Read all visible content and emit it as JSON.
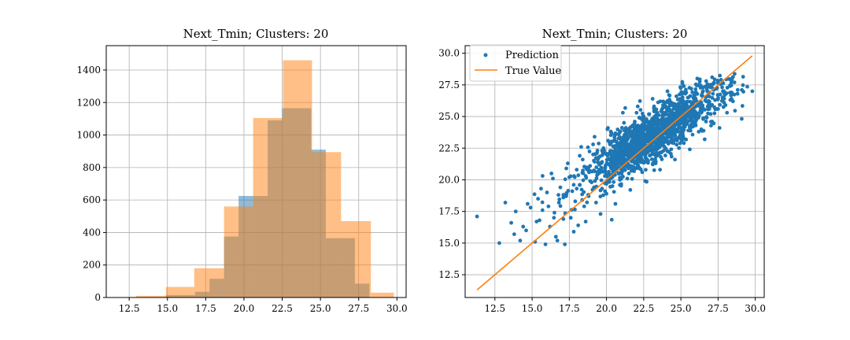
{
  "colors": {
    "blue": "#1f77b4",
    "orange": "#ff7f0e",
    "grid": "#b0b0b0"
  },
  "chart_data": [
    {
      "type": "bar",
      "subtype": "histogram-overlay",
      "title": "Next_Tmin; Clusters: 20",
      "grid": true,
      "xlim": [
        11.0,
        30.6
      ],
      "ylim": [
        0,
        1550
      ],
      "xticks": [
        12.5,
        15.0,
        17.5,
        20.0,
        22.5,
        25.0,
        27.5,
        30.0
      ],
      "xtick_labels": [
        "12.5",
        "15.0",
        "17.5",
        "20.0",
        "22.5",
        "25.0",
        "27.5",
        "30.0"
      ],
      "yticks": [
        0,
        200,
        400,
        600,
        800,
        1000,
        1200,
        1400
      ],
      "ytick_labels": [
        "0",
        "200",
        "400",
        "600",
        "800",
        "1000",
        "1200",
        "1400"
      ],
      "series": [
        {
          "color": "#1f77b4",
          "alpha": 0.5,
          "bins": [
            [
              14.9,
              15.85,
              15
            ],
            [
              15.85,
              16.8,
              15
            ],
            [
              16.8,
              17.75,
              35
            ],
            [
              17.75,
              18.7,
              115
            ],
            [
              18.7,
              19.65,
              375
            ],
            [
              19.65,
              20.6,
              625
            ],
            [
              20.6,
              21.55,
              625
            ],
            [
              21.55,
              22.5,
              1090
            ],
            [
              22.5,
              23.45,
              1165
            ],
            [
              23.45,
              24.4,
              1165
            ],
            [
              24.4,
              25.35,
              910
            ],
            [
              25.35,
              26.3,
              365
            ],
            [
              26.3,
              27.25,
              365
            ],
            [
              27.25,
              28.2,
              85
            ]
          ]
        },
        {
          "color": "#ff7f0e",
          "alpha": 0.5,
          "bins": [
            [
              12.95,
              14.9,
              10
            ],
            [
              14.9,
              16.75,
              65
            ],
            [
              16.75,
              18.7,
              180
            ],
            [
              18.7,
              20.6,
              560
            ],
            [
              20.6,
              22.55,
              1105
            ],
            [
              22.55,
              24.45,
              1460
            ],
            [
              24.45,
              26.35,
              895
            ],
            [
              26.35,
              28.3,
              470
            ],
            [
              28.3,
              29.8,
              30
            ]
          ]
        }
      ]
    },
    {
      "type": "scatter",
      "title": "Next_Tmin; Clusters: 20",
      "grid": true,
      "xlim": [
        10.5,
        30.6
      ],
      "ylim": [
        10.7,
        30.6
      ],
      "xticks": [
        12.5,
        15.0,
        17.5,
        20.0,
        22.5,
        25.0,
        27.5,
        30.0
      ],
      "xtick_labels": [
        "12.5",
        "15.0",
        "17.5",
        "20.0",
        "22.5",
        "25.0",
        "27.5",
        "30.0"
      ],
      "yticks": [
        12.5,
        15.0,
        17.5,
        20.0,
        22.5,
        25.0,
        27.5,
        30.0
      ],
      "ytick_labels": [
        "12.5",
        "15.0",
        "17.5",
        "20.0",
        "22.5",
        "25.0",
        "27.5",
        "30.0"
      ],
      "legend_position": "top-left",
      "series": [
        {
          "name": "Prediction",
          "kind": "scatter",
          "color": "#1f77b4",
          "points": [
            [
              11.3,
              17.1
            ],
            [
              12.8,
              15.0
            ],
            [
              13.2,
              18.2
            ],
            [
              13.6,
              16.6
            ],
            [
              13.9,
              17.5
            ],
            [
              14.2,
              15.2
            ],
            [
              14.6,
              16.0
            ],
            [
              14.9,
              17.8
            ],
            [
              15.2,
              15.1
            ],
            [
              15.4,
              18.5
            ],
            [
              15.5,
              16.8
            ],
            [
              15.7,
              17.6
            ],
            [
              15.9,
              14.9
            ],
            [
              16.0,
              19.0
            ],
            [
              16.2,
              16.3
            ],
            [
              16.3,
              20.5
            ],
            [
              16.5,
              17.4
            ],
            [
              16.6,
              15.5
            ],
            [
              16.8,
              18.2
            ],
            [
              16.9,
              19.4
            ],
            [
              17.1,
              16.9
            ],
            [
              17.2,
              14.9
            ],
            [
              17.3,
              18.8
            ],
            [
              17.5,
              20.2
            ],
            [
              17.6,
              17.0
            ],
            [
              17.7,
              19.1
            ],
            [
              17.9,
              18.3
            ],
            [
              18.0,
              20.8
            ],
            [
              18.1,
              16.4
            ],
            [
              18.2,
              19.6
            ],
            [
              18.4,
              21.6
            ],
            [
              18.5,
              17.9
            ],
            [
              18.6,
              20.3
            ],
            [
              18.8,
              18.7
            ],
            [
              18.9,
              21.1
            ],
            [
              19.0,
              19.8
            ],
            [
              19.1,
              22.0
            ],
            [
              19.3,
              18.2
            ],
            [
              19.4,
              20.6
            ],
            [
              19.5,
              21.8
            ],
            [
              19.7,
              19.3
            ],
            [
              19.8,
              22.5
            ],
            [
              19.9,
              20.9
            ],
            [
              20.0,
              18.9
            ],
            [
              20.2,
              21.6
            ],
            [
              20.3,
              23.0
            ],
            [
              20.4,
              20.2
            ],
            [
              20.5,
              22.2
            ],
            [
              20.7,
              21.0
            ],
            [
              20.8,
              23.6
            ],
            [
              20.9,
              19.6
            ],
            [
              21.0,
              22.7
            ],
            [
              21.2,
              21.4
            ],
            [
              21.3,
              24.1
            ],
            [
              21.4,
              22.0
            ],
            [
              21.5,
              20.5
            ],
            [
              21.7,
              23.1
            ],
            [
              21.8,
              21.7
            ],
            [
              21.9,
              24.6
            ],
            [
              22.0,
              22.5
            ],
            [
              22.2,
              20.9
            ],
            [
              22.3,
              23.7
            ],
            [
              22.4,
              22.1
            ],
            [
              22.5,
              25.0
            ],
            [
              22.7,
              23.0
            ],
            [
              22.8,
              21.5
            ],
            [
              22.9,
              24.2
            ],
            [
              23.0,
              22.8
            ],
            [
              23.2,
              25.4
            ],
            [
              23.3,
              23.5
            ],
            [
              23.4,
              21.9
            ],
            [
              23.5,
              24.7
            ],
            [
              23.7,
              23.2
            ],
            [
              23.8,
              25.9
            ],
            [
              23.9,
              22.6
            ],
            [
              24.0,
              24.4
            ],
            [
              24.2,
              26.2
            ],
            [
              24.3,
              23.8
            ],
            [
              24.4,
              25.1
            ],
            [
              24.5,
              22.9
            ],
            [
              24.7,
              26.6
            ],
            [
              24.8,
              24.0
            ],
            [
              24.9,
              25.5
            ],
            [
              25.0,
              23.4
            ],
            [
              25.2,
              26.9
            ],
            [
              25.3,
              24.6
            ],
            [
              25.4,
              25.9
            ],
            [
              25.5,
              23.9
            ],
            [
              25.7,
              27.2
            ],
            [
              25.8,
              25.0
            ],
            [
              25.9,
              26.3
            ],
            [
              26.0,
              24.3
            ],
            [
              26.2,
              27.5
            ],
            [
              26.3,
              25.4
            ],
            [
              26.4,
              26.7
            ],
            [
              26.5,
              24.8
            ],
            [
              26.7,
              27.8
            ],
            [
              26.8,
              25.8
            ],
            [
              26.9,
              26.9
            ],
            [
              27.0,
              25.2
            ],
            [
              27.2,
              27.6
            ],
            [
              27.3,
              26.3
            ],
            [
              27.4,
              27.2
            ],
            [
              27.5,
              25.6
            ],
            [
              27.7,
              27.9
            ],
            [
              27.8,
              26.5
            ],
            [
              27.9,
              27.0
            ],
            [
              28.0,
              25.9
            ],
            [
              28.3,
              27.4
            ],
            [
              28.5,
              26.2
            ],
            [
              28.8,
              26.8
            ],
            [
              29.1,
              27.1
            ],
            [
              29.8,
              27.0
            ],
            [
              28.6,
              27.7
            ],
            [
              27.1,
              28.1
            ],
            [
              26.1,
              28.0
            ],
            [
              25.1,
              27.6
            ],
            [
              24.1,
              27.0
            ],
            [
              23.1,
              26.4
            ],
            [
              22.1,
              25.8
            ],
            [
              21.1,
              25.3
            ],
            [
              20.1,
              24.1
            ],
            [
              19.2,
              23.4
            ],
            [
              18.3,
              22.6
            ],
            [
              17.4,
              21.3
            ],
            [
              16.4,
              20.1
            ],
            [
              15.6,
              19.3
            ],
            [
              14.7,
              18.1
            ],
            [
              20.6,
              18.1
            ],
            [
              21.6,
              19.2
            ],
            [
              22.6,
              19.9
            ],
            [
              23.6,
              20.8
            ],
            [
              24.6,
              21.6
            ],
            [
              25.6,
              22.4
            ],
            [
              26.6,
              23.2
            ],
            [
              27.6,
              24.1
            ],
            [
              19.6,
              17.3
            ],
            [
              18.6,
              16.7
            ],
            [
              17.8,
              15.9
            ],
            [
              16.7,
              15.2
            ],
            [
              22.4,
              20.6
            ],
            [
              23.3,
              21.3
            ],
            [
              24.2,
              22.2
            ],
            [
              25.2,
              22.9
            ],
            [
              26.2,
              23.8
            ],
            [
              27.1,
              24.6
            ],
            [
              28.1,
              25.3
            ],
            [
              20.4,
              19.5
            ],
            [
              21.4,
              20.1
            ],
            [
              22.1,
              21.2
            ],
            [
              23.1,
              22.1
            ],
            [
              24.0,
              23.0
            ],
            [
              25.0,
              23.8
            ],
            [
              26.0,
              24.9
            ],
            [
              26.9,
              25.7
            ],
            [
              27.9,
              26.9
            ],
            [
              21.2,
              23.9
            ],
            [
              22.2,
              24.9
            ],
            [
              23.2,
              25.8
            ],
            [
              24.2,
              26.7
            ],
            [
              25.2,
              27.4
            ],
            [
              19.1,
              22.8
            ],
            [
              18.2,
              21.9
            ],
            [
              17.3,
              20.9
            ],
            [
              20.0,
              20.4
            ],
            [
              21.0,
              21.9
            ],
            [
              22.0,
              22.9
            ],
            [
              23.0,
              23.9
            ],
            [
              24.0,
              24.8
            ],
            [
              25.0,
              25.7
            ],
            [
              26.0,
              26.3
            ],
            [
              20.7,
              21.2
            ],
            [
              21.7,
              22.3
            ],
            [
              22.7,
              23.3
            ],
            [
              23.7,
              24.3
            ],
            [
              24.7,
              25.2
            ],
            [
              25.7,
              26.1
            ],
            [
              26.7,
              26.2
            ],
            [
              19.5,
              20.8
            ],
            [
              18.9,
              19.9
            ],
            [
              18.0,
              19.3
            ],
            [
              17.1,
              18.6
            ],
            [
              16.1,
              17.9
            ],
            [
              15.3,
              16.7
            ],
            [
              14.4,
              16.3
            ],
            [
              13.8,
              15.7
            ],
            [
              19.9,
              19.1
            ],
            [
              20.9,
              20.0
            ],
            [
              21.9,
              21.3
            ],
            [
              22.9,
              22.3
            ],
            [
              23.9,
              23.3
            ],
            [
              24.9,
              24.2
            ],
            [
              25.9,
              25.3
            ],
            [
              26.9,
              26.1
            ],
            [
              27.9,
              26.1
            ],
            [
              21.5,
              22.6
            ],
            [
              22.5,
              23.6
            ],
            [
              23.5,
              24.6
            ],
            [
              24.5,
              25.6
            ],
            [
              25.5,
              26.5
            ],
            [
              26.5,
              27.3
            ],
            [
              27.5,
              27.7
            ],
            [
              20.3,
              22.9
            ],
            [
              21.3,
              23.2
            ],
            [
              22.3,
              24.2
            ],
            [
              23.3,
              24.9
            ],
            [
              24.3,
              25.9
            ],
            [
              25.3,
              26.8
            ]
          ]
        },
        {
          "name": "True Value",
          "kind": "line",
          "color": "#ff7f0e",
          "points": [
            [
              11.3,
              11.3
            ],
            [
              29.8,
              29.8
            ]
          ]
        }
      ]
    }
  ]
}
